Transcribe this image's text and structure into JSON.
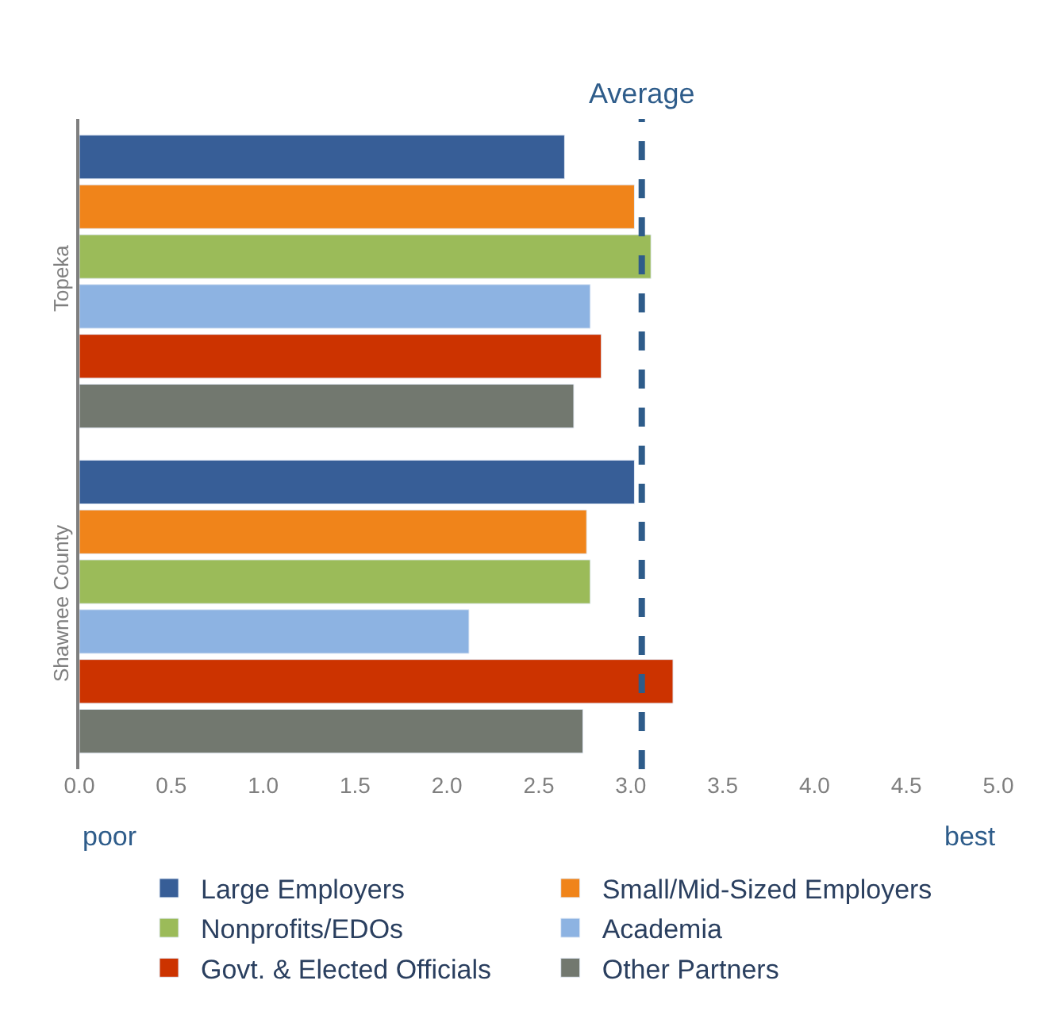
{
  "chart_data": {
    "type": "bar",
    "orientation": "horizontal",
    "categories": [
      "Topeka",
      "Shawnee County"
    ],
    "series": [
      {
        "name": "Large Employers",
        "color": "#375e97",
        "values": [
          2.64,
          3.02
        ]
      },
      {
        "name": "Small/Mid-Sized Employers",
        "color": "#f0841a",
        "values": [
          3.02,
          2.76
        ]
      },
      {
        "name": "Nonprofits/EDOs",
        "color": "#9bbb59",
        "values": [
          3.11,
          2.78
        ]
      },
      {
        "name": "Academia",
        "color": "#8db3e2",
        "values": [
          2.78,
          2.12
        ]
      },
      {
        "name": "Govt. & Elected Officials",
        "color": "#cc3300",
        "values": [
          2.84,
          3.23
        ]
      },
      {
        "name": "Other Partners",
        "color": "#72786f",
        "values": [
          2.69,
          2.74
        ]
      }
    ],
    "xlim": [
      0,
      5
    ],
    "xticks": [
      {
        "value": 0,
        "label": "0.0"
      },
      0.5,
      {
        "value": 1,
        "label": "1.0"
      },
      1.5,
      {
        "value": 2,
        "label": "2.0"
      },
      2.5,
      {
        "value": 3,
        "label": "3.0"
      },
      3.5,
      {
        "value": 4,
        "label": "4.0"
      },
      4.5,
      {
        "value": 5,
        "label": "5.0"
      }
    ],
    "ref_lines": [
      {
        "axis": "x",
        "value": 3.06,
        "label": "Average",
        "color": "#2e5c8a",
        "line_style": "dashed"
      }
    ],
    "annotations": [
      "poor",
      "best"
    ],
    "legend": "bottom"
  }
}
